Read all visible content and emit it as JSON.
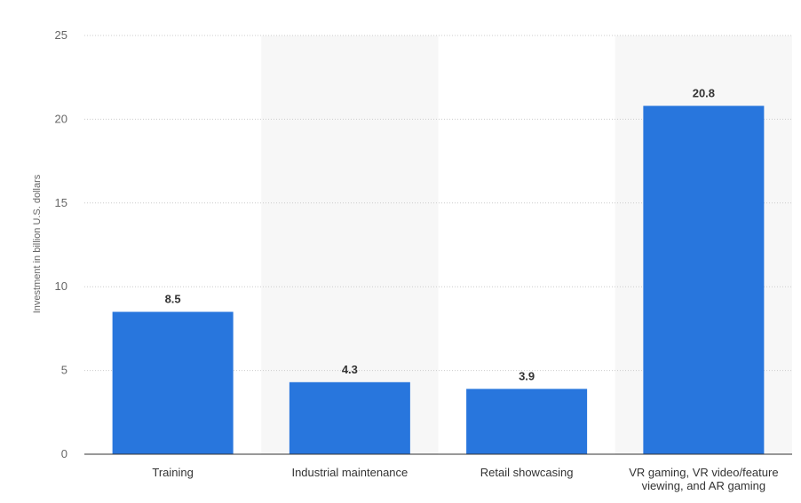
{
  "chart_data": {
    "type": "bar",
    "categories": [
      [
        "Training"
      ],
      [
        "Industrial maintenance"
      ],
      [
        "Retail showcasing"
      ],
      [
        "VR gaming, VR video/feature",
        "viewing, and AR gaming"
      ]
    ],
    "values": [
      8.5,
      4.3,
      3.9,
      20.8
    ],
    "value_labels": [
      "8.5",
      "4.3",
      "3.9",
      "20.8"
    ],
    "title": "",
    "xlabel": "",
    "ylabel": "Investment in billion U.S. dollars",
    "ylim": [
      0,
      25
    ],
    "yticks": [
      0,
      5,
      10,
      15,
      20,
      25
    ],
    "grid": true,
    "alternating_band_color": "#f7f7f7",
    "bar_color": "#2876dd",
    "grid_color": "#cccccc",
    "axis_color": "#333333"
  }
}
